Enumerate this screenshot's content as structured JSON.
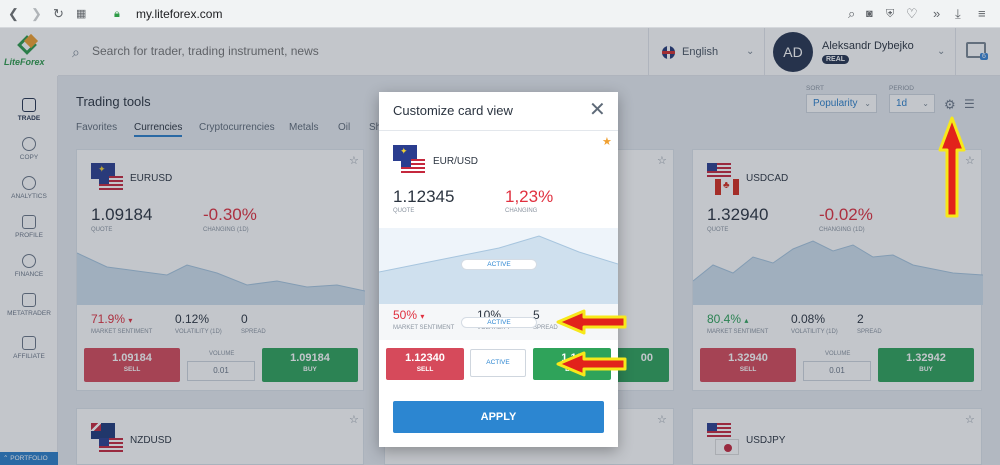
{
  "browser": {
    "url": "my.liteforex.com"
  },
  "header": {
    "logo_text": "LiteForex",
    "search_placeholder": "Search for trader, trading instrument, news",
    "language": "English",
    "user": {
      "initials": "AD",
      "name": "Aleksandr Dybejko",
      "account_type": "REAL"
    },
    "chat_badge": "6"
  },
  "sidebar": {
    "items": [
      {
        "label": "TRADE",
        "icon": "chart-icon"
      },
      {
        "label": "COPY",
        "icon": "user-icon"
      },
      {
        "label": "ANALYTICS",
        "icon": "magnifier-icon"
      },
      {
        "label": "PROFILE",
        "icon": "profile-card-icon"
      },
      {
        "label": "FINANCE",
        "icon": "dollar-icon"
      },
      {
        "label": "METATRADER",
        "icon": "monitor-icon"
      },
      {
        "label": "AFFILIATE",
        "icon": "handshake-icon"
      }
    ],
    "portfolio_label": "PORTFOLIO"
  },
  "main": {
    "title": "Trading tools",
    "tabs": [
      "Favorites",
      "Currencies",
      "Cryptocurrencies",
      "Metals",
      "Oil",
      "Sh"
    ],
    "sort_label": "SORT",
    "sort_value": "Popularity",
    "period_label": "PERIOD",
    "period_value": "1d"
  },
  "cards": {
    "eurusd": {
      "pair": "EURUSD",
      "quote": "1.09184",
      "change": "-0.30%",
      "quote_label": "QUOTE",
      "change_label": "CHANGING (1D)",
      "sentiment": "71.9%",
      "volatility": "0.12%",
      "spread": "0",
      "sentiment_label": "MARKET SENTIMENT",
      "volatility_label": "VOLATILITY (1D)",
      "spread_label": "SPREAD",
      "sell_price": "1.09184",
      "buy_price": "1.09184",
      "sell_label": "SELL",
      "buy_label": "BUY",
      "volume_label": "VOLUME",
      "volume": "0.01"
    },
    "middle_buy_fragment": "00",
    "usdcad": {
      "pair": "USDCAD",
      "quote": "1.32940",
      "change": "-0.02%",
      "quote_label": "QUOTE",
      "change_label": "CHANGING (1D)",
      "sentiment": "80.4%",
      "volatility": "0.08%",
      "spread": "2",
      "sentiment_label": "MARKET SENTIMENT",
      "volatility_label": "VOLATILITY (1D)",
      "spread_label": "SPREAD",
      "sell_price": "1.32940",
      "buy_price": "1.32942",
      "sell_label": "SELL",
      "buy_label": "BUY",
      "volume_label": "VOLUME",
      "volume": "0.01"
    },
    "nzdusd": {
      "pair": "NZDUSD"
    },
    "usdjpy": {
      "pair": "USDJPY"
    }
  },
  "modal": {
    "title": "Customize card view",
    "pair": "EUR/USD",
    "quote": "1.12345",
    "change": "1,23%",
    "quote_label": "QUOTE",
    "change_label": "CHANGING",
    "active_label": "ACTIVE",
    "sentiment": "50%",
    "volatility": "10%",
    "spread": "5",
    "sentiment_label": "MARKET SENTIMENT",
    "volatility_label": "VOLATILITY",
    "spread_label": "SPREAD",
    "sell_price": "1.12340",
    "sell_label": "SELL",
    "buy_price": "1.12",
    "buy_label": "BUY",
    "apply_label": "APPLY"
  },
  "colors": {
    "negative": "#e0303f",
    "positive": "#2fa35a",
    "accent": "#2c86d1",
    "arrow": "#e2221b",
    "arrow_outline": "#f7e81a"
  }
}
